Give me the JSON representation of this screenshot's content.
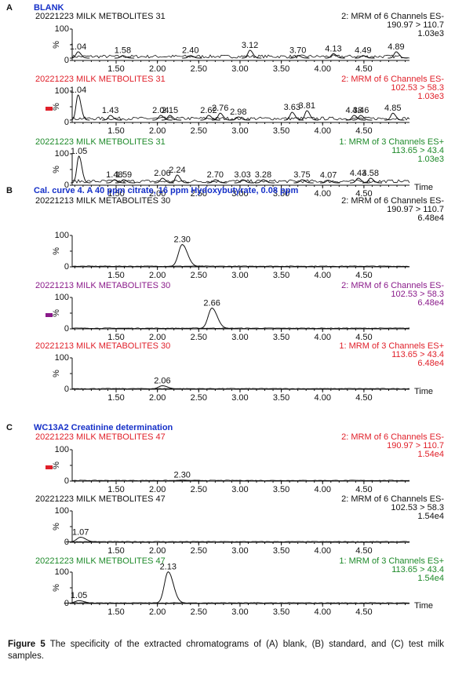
{
  "panels": [
    {
      "letter": "A",
      "title": "BLANK",
      "traces": [
        {
          "sample": "20221223 MILK METBOLITES 31",
          "channel": "2: MRM of 6 Channels ES-",
          "transition": "190.97 > 110.7",
          "intensity": "1.03e3",
          "color": "#111111",
          "peaks": [
            {
              "label": "1.04",
              "height": 20
            },
            {
              "label": "1.58",
              "height": 8
            },
            {
              "label": "2.40",
              "height": 8
            },
            {
              "label": "3.12",
              "height": 25
            },
            {
              "label": "3.70",
              "height": 8
            },
            {
              "label": "4.13",
              "height": 14
            },
            {
              "label": "4.49",
              "height": 8
            },
            {
              "label": "4.89",
              "height": 20
            }
          ]
        },
        {
          "sample": "20221223 MILK METBOLITES 31",
          "channel": "2: MRM of 6 Channels ES-",
          "transition": "102.53 > 58.3",
          "intensity": "1.03e3",
          "color": "#e0202a",
          "marker_color": "#e0202a",
          "peaks": [
            {
              "label": "1.04",
              "height": 80
            },
            {
              "label": "1.43",
              "height": 15
            },
            {
              "label": "2.04",
              "height": 15
            },
            {
              "label": "2.15",
              "height": 15
            },
            {
              "label": "2.62",
              "height": 15
            },
            {
              "label": "2.76",
              "height": 22
            },
            {
              "label": "2.98",
              "height": 10
            },
            {
              "label": "3.63",
              "height": 25
            },
            {
              "label": "3.81",
              "height": 30
            },
            {
              "label": "4.38",
              "height": 15
            },
            {
              "label": "4.46",
              "height": 15
            },
            {
              "label": "4.85",
              "height": 22
            }
          ]
        },
        {
          "sample": "20221223 MILK METBOLITES 31",
          "channel": "1: MRM of 3 Channels ES+",
          "transition": "113.65 > 43.4",
          "intensity": "1.03e3",
          "color": "#1e8a2a",
          "peaks": [
            {
              "label": "1.05",
              "height": 85
            },
            {
              "label": "1.48",
              "height": 10
            },
            {
              "label": "1.59",
              "height": 10
            },
            {
              "label": "2.06",
              "height": 15
            },
            {
              "label": "2.24",
              "height": 25
            },
            {
              "label": "2.70",
              "height": 10
            },
            {
              "label": "3.03",
              "height": 10
            },
            {
              "label": "3.28",
              "height": 10
            },
            {
              "label": "3.75",
              "height": 10
            },
            {
              "label": "4.07",
              "height": 8
            },
            {
              "label": "4.43",
              "height": 15
            },
            {
              "label": "4.58",
              "height": 15
            }
          ]
        }
      ]
    },
    {
      "letter": "B",
      "title": "Cal. curve 4. A 40 ppm citrate, 16 ppm Hydoxybutyrate, 0.08 ppm",
      "traces": [
        {
          "sample": "20221213 MILK METABOLITES 30",
          "channel": "2: MRM of 6 Channels ES-",
          "transition": "190.97 > 110.7",
          "intensity": "6.48e4",
          "color": "#111111",
          "peaks": [
            {
              "label": "2.30",
              "height": 70
            }
          ]
        },
        {
          "sample": "20221213 MILK METABOLITES 30",
          "channel": "2: MRM of 6 Channels ES-",
          "transition": "102.53 > 58.3",
          "intensity": "6.48e4",
          "color": "#8a1a8a",
          "marker_color": "#8a1a8a",
          "peaks": [
            {
              "label": "2.66",
              "height": 65
            }
          ]
        },
        {
          "sample": "20221213 MILK METABOLITES 30",
          "channel": "1: MRM of 3 Channels ES+",
          "transition": "113.65 > 43.4",
          "intensity": "6.48e4",
          "color": "#e0202a",
          "peaks": [
            {
              "label": "2.06",
              "height": 10
            }
          ]
        }
      ]
    },
    {
      "letter": "C",
      "title": "WC13A2 Creatinine determination",
      "traces": [
        {
          "sample": "20221223 MILK METBOLITES 47",
          "channel": "2: MRM of 6 Channels ES-",
          "transition": "190.97 > 110.7",
          "intensity": "1.54e4",
          "color": "#e0202a",
          "marker_color": "#e0202a",
          "peaks": [
            {
              "label": "2.30",
              "height": 2
            }
          ]
        },
        {
          "sample": "20221223 MILK METBOLITES 47",
          "channel": "2: MRM of 6 Channels ES-",
          "transition": "102.53 > 58.3",
          "intensity": "1.54e4",
          "color": "#111111",
          "peaks": [
            {
              "label": "1.07",
              "height": 15
            }
          ]
        },
        {
          "sample": "20221223 MILK METBOLITES 47",
          "channel": "1: MRM of 3 Channels ES+",
          "transition": "113.65 > 43.4",
          "intensity": "1.54e4",
          "color": "#1e8a2a",
          "peaks": [
            {
              "label": "1.05",
              "height": 8
            },
            {
              "label": "2.13",
              "height": 100
            }
          ]
        }
      ]
    }
  ],
  "y_axis": {
    "top": "100",
    "label": "%",
    "bottom": "0"
  },
  "x_ticks": [
    "1.50",
    "2.00",
    "2.50",
    "3.00",
    "3.50",
    "4.00",
    "4.50"
  ],
  "x_label": "Time",
  "caption": {
    "label": "Figure 5",
    "text": "The specificity of the extracted chromatograms of (A) blank, (B) standard, and (C) test milk samples."
  }
}
